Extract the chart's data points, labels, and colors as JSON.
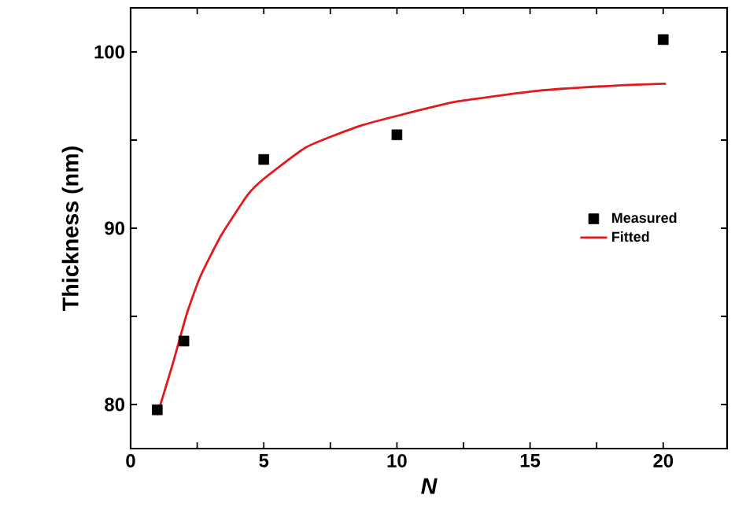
{
  "chart_data": {
    "type": "scatter",
    "xlabel": "N",
    "ylabel": "Thickness (nm)",
    "xlim": [
      0,
      22.4
    ],
    "ylim": [
      77.5,
      102.5
    ],
    "xticks": [
      0,
      {
        "value": 2.5,
        "label": null
      },
      5,
      {
        "value": 7.5,
        "label": null
      },
      10,
      {
        "value": 12.5,
        "label": null
      },
      15,
      {
        "value": 17.5,
        "label": null
      },
      20
    ],
    "yticks": [
      80,
      {
        "value": 85,
        "label": null
      },
      90,
      {
        "value": 95,
        "label": null
      },
      100
    ],
    "legend": "right",
    "grid": false,
    "series": [
      {
        "name": "Measured",
        "marker": "square",
        "color": "#000000",
        "x": [
          1,
          2,
          5,
          10,
          20
        ],
        "values": [
          79.7,
          83.6,
          93.9,
          95.3,
          100.7
        ]
      },
      {
        "name": "Fitted",
        "type": "line",
        "marker": "none",
        "line_style": "solid",
        "color": "#e31a1c",
        "x": [
          1,
          1.6,
          2.1,
          2.6,
          3.4,
          4.4,
          5,
          6.6,
          8.6,
          10.6,
          12.3,
          15.3,
          18.3,
          20.1
        ],
        "values": [
          79.4,
          82.4,
          85.1,
          87.2,
          89.6,
          91.9,
          92.8,
          94.6,
          95.8,
          96.6,
          97.2,
          97.8,
          98.1,
          98.2
        ]
      }
    ]
  }
}
